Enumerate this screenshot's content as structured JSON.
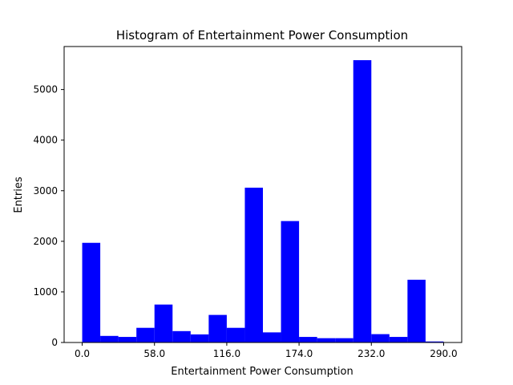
{
  "chart_data": {
    "type": "bar",
    "title": "Histogram of Entertainment Power Consumption",
    "xlabel": "Entertainment Power Consumption",
    "ylabel": "Entries",
    "xlim": [
      -14.5,
      304.5
    ],
    "ylim": [
      0,
      5850
    ],
    "xticks": [
      0,
      58,
      116,
      174,
      232,
      290
    ],
    "xtick_labels": [
      "0.0",
      "58.0",
      "116.0",
      "174.0",
      "232.0",
      "290.0"
    ],
    "yticks": [
      0,
      1000,
      2000,
      3000,
      4000,
      5000
    ],
    "ytick_labels": [
      "0",
      "1000",
      "2000",
      "3000",
      "4000",
      "5000"
    ],
    "grid": false,
    "legend": "none",
    "bar_color": "#0000ff",
    "bin_edges": [
      0,
      14.5,
      29,
      43.5,
      58,
      72.5,
      87,
      101.5,
      116,
      130.5,
      145,
      159.5,
      174,
      188.5,
      203,
      217.5,
      232,
      246.5,
      261,
      275.5,
      290
    ],
    "values": [
      1970,
      130,
      110,
      290,
      750,
      225,
      160,
      545,
      290,
      3060,
      200,
      2400,
      110,
      85,
      85,
      5580,
      165,
      110,
      1240,
      20
    ]
  }
}
